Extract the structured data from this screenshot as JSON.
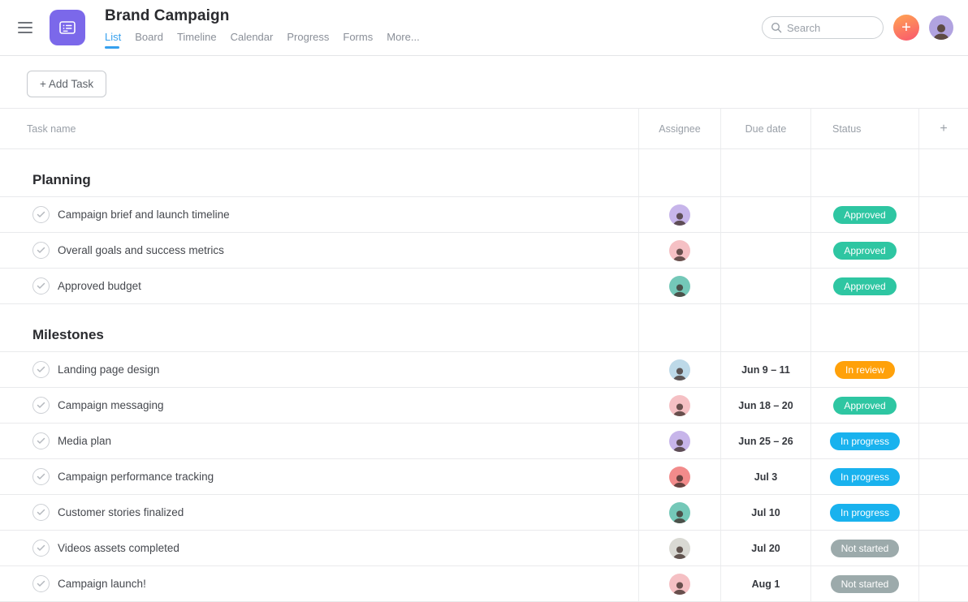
{
  "header": {
    "title": "Brand Campaign",
    "tabs": [
      {
        "label": "List",
        "active": true
      },
      {
        "label": "Board",
        "active": false
      },
      {
        "label": "Timeline",
        "active": false
      },
      {
        "label": "Calendar",
        "active": false
      },
      {
        "label": "Progress",
        "active": false
      },
      {
        "label": "Forms",
        "active": false
      },
      {
        "label": "More...",
        "active": false
      }
    ],
    "search": {
      "placeholder": "Search"
    },
    "create_button_label": "+",
    "icons": {
      "menu": "hamburger-lines",
      "app": "list-board-glyph",
      "search": "magnifier",
      "profile": "person-avatar"
    }
  },
  "toolbar": {
    "add_task_label": "+ Add Task"
  },
  "table": {
    "columns": [
      {
        "label": "Task name"
      },
      {
        "label": "Assignee"
      },
      {
        "label": "Due date"
      },
      {
        "label": "Status"
      },
      {
        "label": "+"
      }
    ],
    "status_colors": {
      "Approved": "#2ec6a2",
      "In review": "#ffa10a",
      "In progress": "#19b2ee",
      "Not started": "#9caaab"
    },
    "sections": [
      {
        "name": "Planning",
        "tasks": [
          {
            "name": "Campaign brief and launch timeline",
            "avatar_color": "#c7b5ea",
            "due": "",
            "status": "Approved"
          },
          {
            "name": "Overall goals and success metrics",
            "avatar_color": "#f5c0c4",
            "due": "",
            "status": "Approved"
          },
          {
            "name": "Approved budget",
            "avatar_color": "#74c8b8",
            "due": "",
            "status": "Approved"
          }
        ]
      },
      {
        "name": "Milestones",
        "tasks": [
          {
            "name": "Landing page design",
            "avatar_color": "#bdd9e8",
            "due": "Jun 9 – 11",
            "status": "In review"
          },
          {
            "name": "Campaign messaging",
            "avatar_color": "#f5c0c4",
            "due": "Jun 18 – 20",
            "status": "Approved"
          },
          {
            "name": "Media plan",
            "avatar_color": "#c7b5ea",
            "due": "Jun 25 – 26",
            "status": "In progress"
          },
          {
            "name": "Campaign performance tracking",
            "avatar_color": "#f28b8b",
            "due": "Jul 3",
            "status": "In progress"
          },
          {
            "name": "Customer stories finalized",
            "avatar_color": "#74c8b8",
            "due": "Jul 10",
            "status": "In progress"
          },
          {
            "name": "Videos assets completed",
            "avatar_color": "#d9d9d3",
            "due": "Jul 20",
            "status": "Not started"
          },
          {
            "name": "Campaign launch!",
            "avatar_color": "#f5c0c4",
            "due": "Aug 1",
            "status": "Not started"
          }
        ]
      }
    ]
  },
  "colors": {
    "accent_blue": "#36a0ee",
    "brand_purple": "#7b68ea",
    "create_gradient_start": "#ffa552",
    "create_gradient_end": "#f9566e",
    "profile_avatar_bg": "#b1a3e0"
  }
}
